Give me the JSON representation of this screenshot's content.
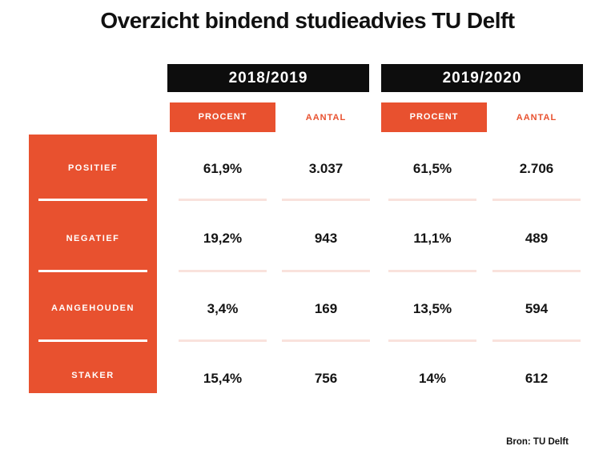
{
  "title": "Overzicht bindend studieadvies TU Delft",
  "source": "Bron: TU Delft",
  "colors": {
    "accent_orange": "#e8512f",
    "header_black": "#0d0d0d",
    "divider_pink": "#f9e2dc",
    "text_dark": "#141414",
    "background": "#ffffff"
  },
  "table": {
    "year_headers": [
      "2018/2019",
      "2019/2020"
    ],
    "column_headers": [
      "PROCENT",
      "AANTAL",
      "PROCENT",
      "AANTAL"
    ],
    "row_headers": [
      "POSITIEF",
      "NEGATIEF",
      "AANGEHOUDEN",
      "STAKER"
    ],
    "rows": [
      [
        "61,9%",
        "3.037",
        "61,5%",
        "2.706"
      ],
      [
        "19,2%",
        "943",
        "11,1%",
        "489"
      ],
      [
        "3,4%",
        "169",
        "13,5%",
        "594"
      ],
      [
        "15,4%",
        "756",
        "14%",
        "612"
      ]
    ]
  },
  "chart_data": {
    "type": "table",
    "title": "Overzicht bindend studieadvies TU Delft",
    "categories": [
      "Positief",
      "Negatief",
      "Aangehouden",
      "Staker"
    ],
    "series": [
      {
        "name": "2018/2019 Procent",
        "values": [
          61.9,
          19.2,
          3.4,
          15.4
        ]
      },
      {
        "name": "2018/2019 Aantal",
        "values": [
          3037,
          943,
          169,
          756
        ]
      },
      {
        "name": "2019/2020 Procent",
        "values": [
          61.5,
          11.1,
          13.5,
          14.0
        ]
      },
      {
        "name": "2019/2020 Aantal",
        "values": [
          2706,
          489,
          594,
          612
        ]
      }
    ],
    "source": "Bron: TU Delft"
  }
}
